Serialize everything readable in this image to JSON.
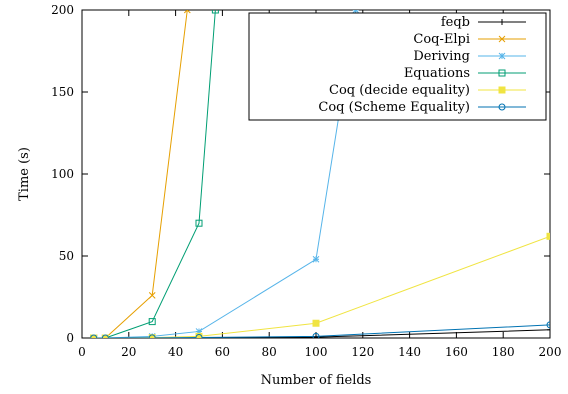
{
  "chart_data": {
    "type": "line",
    "xlabel": "Number of fields",
    "ylabel": "Time (s)",
    "xlim": [
      0,
      200
    ],
    "ylim": [
      0,
      200
    ],
    "xticks": [
      0,
      20,
      40,
      60,
      80,
      100,
      120,
      140,
      160,
      180,
      200
    ],
    "yticks": [
      0,
      50,
      100,
      150,
      200
    ],
    "grid": false,
    "legend_position": "top-right",
    "series": [
      {
        "name": "feqb",
        "color": "#000000",
        "marker": "plus",
        "points": [
          [
            5,
            0
          ],
          [
            10,
            0
          ],
          [
            30,
            0
          ],
          [
            50,
            0.1
          ],
          [
            100,
            0.5
          ],
          [
            200,
            5
          ]
        ]
      },
      {
        "name": "Coq-Elpi",
        "color": "#e69f00",
        "marker": "x",
        "points": [
          [
            5,
            0
          ],
          [
            10,
            0
          ],
          [
            30,
            26
          ],
          [
            45,
            200
          ]
        ]
      },
      {
        "name": "Deriving",
        "color": "#56b4e9",
        "marker": "star",
        "points": [
          [
            5,
            0
          ],
          [
            10,
            0
          ],
          [
            30,
            1
          ],
          [
            50,
            4
          ],
          [
            100,
            48
          ],
          [
            117,
            200
          ]
        ]
      },
      {
        "name": "Equations",
        "color": "#009e73",
        "marker": "square-open",
        "points": [
          [
            5,
            0
          ],
          [
            10,
            0
          ],
          [
            30,
            10
          ],
          [
            50,
            70
          ],
          [
            57,
            200
          ]
        ]
      },
      {
        "name": "Coq (decide equality)",
        "color": "#f0e442",
        "marker": "square-filled",
        "points": [
          [
            5,
            0
          ],
          [
            10,
            0
          ],
          [
            30,
            0.2
          ],
          [
            50,
            1
          ],
          [
            100,
            9
          ],
          [
            200,
            62
          ]
        ]
      },
      {
        "name": "Coq (Scheme Equality)",
        "color": "#0072b2",
        "marker": "circle-open",
        "points": [
          [
            5,
            0
          ],
          [
            10,
            0
          ],
          [
            30,
            0.1
          ],
          [
            50,
            0.3
          ],
          [
            100,
            1
          ],
          [
            200,
            8
          ]
        ]
      }
    ]
  }
}
